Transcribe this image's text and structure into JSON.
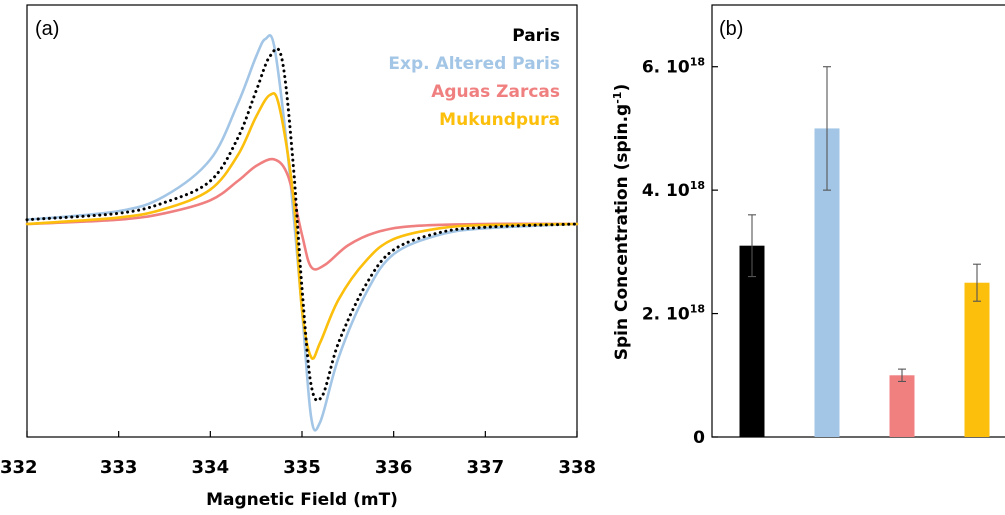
{
  "chart_data": [
    {
      "panel": "(a)",
      "type": "line",
      "xlabel": "Magnetic Field (mT)",
      "ylabel": "",
      "xlim": [
        332,
        338
      ],
      "xticks": [
        "332",
        "333",
        "334",
        "335",
        "336",
        "337",
        "338"
      ],
      "ylim": [
        -1.1,
        1.0
      ],
      "grid": false,
      "legend_position": "top-right",
      "series": [
        {
          "name": "Paris",
          "color": "#000000",
          "style": "dotted",
          "x": [
            332,
            333.0,
            333.5,
            334.0,
            334.3,
            334.5,
            334.65,
            334.78,
            334.9,
            335.0,
            335.1,
            335.22,
            335.4,
            335.7,
            336.0,
            336.5,
            337.0,
            338
          ],
          "y": [
            0.02,
            0.05,
            0.1,
            0.2,
            0.4,
            0.62,
            0.78,
            0.77,
            0.3,
            -0.3,
            -0.75,
            -0.8,
            -0.55,
            -0.28,
            -0.12,
            -0.04,
            -0.015,
            0.0
          ]
        },
        {
          "name": "Exp. Altered Paris",
          "color": "#a3c6e6",
          "style": "solid",
          "x": [
            332,
            333.0,
            333.5,
            334.0,
            334.3,
            334.5,
            334.6,
            334.7,
            334.85,
            335.0,
            335.1,
            335.2,
            335.4,
            335.7,
            336.0,
            336.5,
            337.0,
            338
          ],
          "y": [
            0.02,
            0.06,
            0.13,
            0.3,
            0.56,
            0.78,
            0.86,
            0.82,
            0.3,
            -0.4,
            -0.9,
            -0.92,
            -0.62,
            -0.32,
            -0.14,
            -0.05,
            -0.02,
            0.0
          ]
        },
        {
          "name": "Aguas Zarcas",
          "color": "#f08080",
          "style": "solid",
          "x": [
            332,
            333.0,
            333.5,
            334.0,
            334.3,
            334.5,
            334.7,
            334.85,
            335.0,
            335.1,
            335.25,
            335.5,
            335.8,
            336.2,
            337.0,
            338
          ],
          "y": [
            0.0,
            0.02,
            0.05,
            0.11,
            0.2,
            0.27,
            0.3,
            0.22,
            -0.05,
            -0.2,
            -0.19,
            -0.1,
            -0.04,
            -0.01,
            0.0,
            0.0
          ]
        },
        {
          "name": "Mukundpura",
          "color": "#fbbf0c",
          "style": "solid",
          "x": [
            332,
            333.0,
            333.5,
            334.0,
            334.3,
            334.5,
            334.65,
            334.75,
            334.9,
            335.0,
            335.1,
            335.2,
            335.4,
            335.7,
            336.0,
            336.5,
            337.0,
            338
          ],
          "y": [
            0.0,
            0.03,
            0.07,
            0.16,
            0.32,
            0.5,
            0.6,
            0.55,
            0.15,
            -0.4,
            -0.62,
            -0.55,
            -0.35,
            -0.17,
            -0.07,
            -0.02,
            -0.005,
            0.0
          ]
        }
      ]
    },
    {
      "panel": "(b)",
      "type": "bar",
      "ylabel": "Spin Concentration (spin.g",
      "ylabel_sup": "-1",
      "ylabel_end": ")",
      "ylim": [
        0,
        7e+18
      ],
      "yticks": [
        {
          "value": 0,
          "base": "0",
          "exp": ""
        },
        {
          "value": 2e+18,
          "base": "2. 10",
          "exp": "18"
        },
        {
          "value": 4e+18,
          "base": "4. 10",
          "exp": "18"
        },
        {
          "value": 6e+18,
          "base": "6. 10",
          "exp": "18"
        }
      ],
      "categories": [
        "Paris",
        "Exp. Altered Paris",
        "Aguas Zarcas",
        "Mukundpura"
      ],
      "values": [
        3.1e+18,
        5e+18,
        1e+18,
        2.5e+18
      ],
      "errors": [
        5e+17,
        1e+18,
        1e+17,
        3e+17
      ],
      "colors": [
        "#000000",
        "#a3c6e6",
        "#f08080",
        "#fbbf0c"
      ]
    }
  ]
}
